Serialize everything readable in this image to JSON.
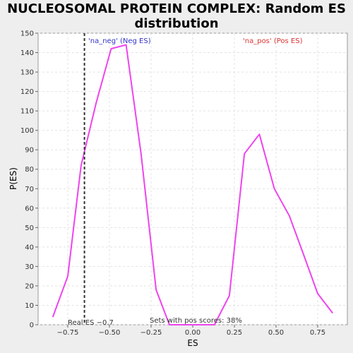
{
  "chart_data": {
    "type": "line",
    "title_line1": "NUCLEOSOMAL PROTEIN COMPLEX: Random ES",
    "title_line2": "distribution",
    "xlabel": "ES",
    "ylabel": "P(ES)",
    "xlim": [
      -0.92,
      0.92
    ],
    "ylim": [
      0,
      150
    ],
    "xticks": [
      -0.75,
      -0.5,
      -0.25,
      0.0,
      0.25,
      0.5,
      0.75
    ],
    "xtick_labels": [
      "−0.75",
      "−0.50",
      "−0.25",
      "0.00",
      "0.25",
      "0.50",
      "0.75"
    ],
    "yticks": [
      0,
      10,
      20,
      30,
      40,
      50,
      60,
      70,
      80,
      90,
      100,
      110,
      120,
      130,
      140,
      150
    ],
    "grid": true,
    "series": [
      {
        "color": "#ee44ee",
        "x": [
          -0.84,
          -0.75,
          -0.67,
          -0.58,
          -0.49,
          -0.4,
          -0.31,
          -0.22,
          -0.14,
          -0.05,
          0.04,
          0.13,
          0.22,
          0.31,
          0.4,
          0.49,
          0.58,
          0.67,
          0.75,
          0.84
        ],
        "y": [
          4,
          25,
          82,
          114,
          142,
          144,
          88,
          18,
          0,
          0,
          0,
          0,
          15,
          88,
          98,
          70,
          56,
          35,
          16,
          6
        ]
      }
    ],
    "real_es": -0.65,
    "annotations": {
      "neg_label": "'na_neg' (Neg ES)",
      "pos_label": "'na_pos' (Pos ES)",
      "real_es_label": "Real ES −0.7",
      "pos_scores_label": "Sets with pos scores: 38%"
    },
    "colors": {
      "neg_label": "#3333cc",
      "pos_label": "#dd3333",
      "line": "#ee44ee"
    }
  }
}
